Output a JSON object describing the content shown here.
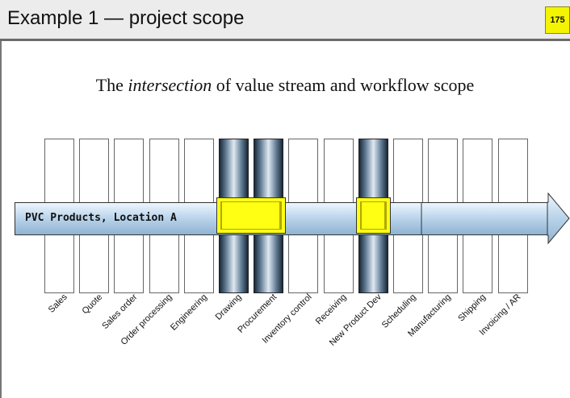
{
  "slide": {
    "title": "Example 1 — project scope",
    "page_number": "175",
    "subtitle_before": "The ",
    "subtitle_em": "intersection",
    "subtitle_after": " of value stream and workflow scope"
  },
  "value_stream": {
    "label": "PVC Products, Location A"
  },
  "workflows": [
    {
      "label": "Sales",
      "in_scope": false
    },
    {
      "label": "Quote",
      "in_scope": false
    },
    {
      "label": "Sales order",
      "in_scope": false
    },
    {
      "label": "Order processing",
      "in_scope": false
    },
    {
      "label": "Engineering",
      "in_scope": false
    },
    {
      "label": "Drawing",
      "in_scope": true
    },
    {
      "label": "Procurement",
      "in_scope": true
    },
    {
      "label": "Inventory control",
      "in_scope": false
    },
    {
      "label": "Receiving",
      "in_scope": false
    },
    {
      "label": "New Product Dev",
      "in_scope": true
    },
    {
      "label": "Scheduling",
      "in_scope": false
    },
    {
      "label": "Manufacturing",
      "in_scope": false
    },
    {
      "label": "Shipping",
      "in_scope": false
    },
    {
      "label": "Invoicing / AR",
      "in_scope": false
    }
  ],
  "colors": {
    "highlight": "#ffff14",
    "stream": "#a9c8e4",
    "badge": "#f4f400"
  }
}
